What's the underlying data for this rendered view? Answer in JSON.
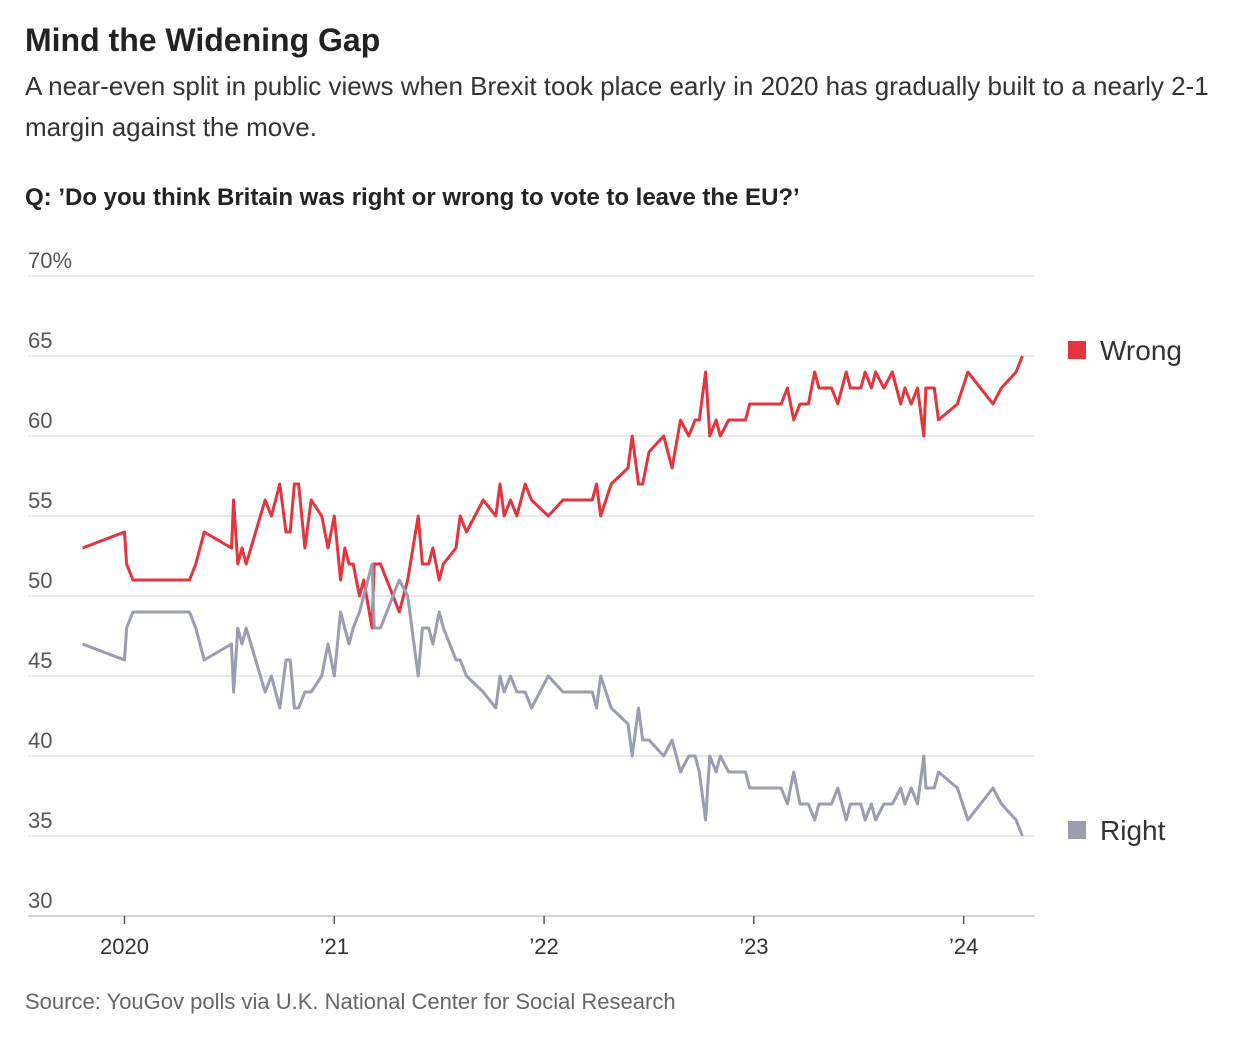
{
  "chart_data": {
    "type": "line",
    "title": "Mind the Widening Gap",
    "subtitle": "A near-even split in public views when Brexit took place early in 2020 has gradually built to a nearly 2-1 margin against the move.",
    "question": "Q: ’Do you think Britain was right or wrong to vote to leave the EU?’",
    "source": "Source: YouGov polls via U.K. National Center for Social Research",
    "xlim": [
      2019.54,
      2024.34
    ],
    "xticks": [
      2020,
      {
        "value": 2021,
        "label": "’21"
      },
      {
        "value": 2022,
        "label": "’22"
      },
      {
        "value": 2023,
        "label": "’23"
      },
      {
        "value": 2024,
        "label": "’24"
      }
    ],
    "ylim": [
      30,
      70
    ],
    "yticks": [
      30,
      35,
      40,
      45,
      50,
      55,
      60,
      65,
      {
        "value": 70,
        "label": "70%"
      }
    ],
    "grid": true,
    "x": [
      2019.8,
      2020.0,
      2020.01,
      2020.04,
      2020.31,
      2020.34,
      2020.38,
      2020.51,
      2020.52,
      2020.54,
      2020.56,
      2020.58,
      2020.67,
      2020.7,
      2020.74,
      2020.77,
      2020.79,
      2020.81,
      2020.83,
      2020.86,
      2020.89,
      2020.94,
      2020.97,
      2021.0,
      2021.03,
      2021.05,
      2021.07,
      2021.09,
      2021.12,
      2021.14,
      2021.18,
      2021.19,
      2021.22,
      2021.31,
      2021.35,
      2021.4,
      2021.42,
      2021.45,
      2021.47,
      2021.5,
      2021.52,
      2021.58,
      2021.6,
      2021.63,
      2021.71,
      2021.77,
      2021.79,
      2021.81,
      2021.84,
      2021.87,
      2021.91,
      2021.94,
      2022.02,
      2022.09,
      2022.23,
      2022.25,
      2022.27,
      2022.32,
      2022.4,
      2022.42,
      2022.45,
      2022.47,
      2022.5,
      2022.57,
      2022.61,
      2022.65,
      2022.69,
      2022.72,
      2022.74,
      2022.77,
      2022.79,
      2022.82,
      2022.84,
      2022.88,
      2022.96,
      2022.98,
      2023.13,
      2023.16,
      2023.19,
      2023.22,
      2023.26,
      2023.29,
      2023.31,
      2023.37,
      2023.4,
      2023.44,
      2023.46,
      2023.51,
      2023.53,
      2023.56,
      2023.58,
      2023.62,
      2023.66,
      2023.7,
      2023.72,
      2023.75,
      2023.78,
      2023.81,
      2023.82,
      2023.86,
      2023.88,
      2023.97,
      2024.02,
      2024.14,
      2024.18,
      2024.25,
      2024.28
    ],
    "series": [
      {
        "name": "Wrong",
        "color": "#e4343e",
        "values": [
          53,
          54,
          52,
          51,
          51,
          52,
          54,
          53,
          56,
          52,
          53,
          52,
          56,
          55,
          57,
          54,
          54,
          57,
          57,
          53,
          56,
          55,
          53,
          55,
          51,
          53,
          52,
          52,
          50,
          51,
          48,
          52,
          52,
          49,
          51,
          55,
          52,
          52,
          53,
          51,
          52,
          53,
          55,
          54,
          56,
          55,
          57,
          55,
          56,
          55,
          57,
          56,
          55,
          56,
          56,
          57,
          55,
          57,
          58,
          60,
          57,
          57,
          59,
          60,
          58,
          61,
          60,
          61,
          61,
          64,
          60,
          61,
          60,
          61,
          61,
          62,
          62,
          63,
          61,
          62,
          62,
          64,
          63,
          63,
          62,
          64,
          63,
          63,
          64,
          63,
          64,
          63,
          64,
          62,
          63,
          62,
          63,
          60,
          63,
          63,
          61,
          62,
          64,
          62,
          63,
          64,
          65
        ]
      },
      {
        "name": "Right",
        "color": "#9a9cb0",
        "values": [
          47,
          46,
          48,
          49,
          49,
          48,
          46,
          47,
          44,
          48,
          47,
          48,
          44,
          45,
          43,
          46,
          46,
          43,
          43,
          44,
          44,
          45,
          47,
          45,
          49,
          48,
          47,
          48,
          49,
          50,
          52,
          48,
          48,
          51,
          50,
          45,
          48,
          48,
          47,
          49,
          48,
          46,
          46,
          45,
          44,
          43,
          45,
          44,
          45,
          44,
          44,
          43,
          45,
          44,
          44,
          43,
          45,
          43,
          42,
          40,
          43,
          41,
          41,
          40,
          41,
          39,
          40,
          40,
          39,
          36,
          40,
          39,
          40,
          39,
          39,
          38,
          38,
          37,
          39,
          37,
          37,
          36,
          37,
          37,
          38,
          36,
          37,
          37,
          36,
          37,
          36,
          37,
          37,
          38,
          37,
          38,
          37,
          40,
          38,
          38,
          39,
          38,
          36,
          38,
          37,
          36,
          35
        ]
      }
    ]
  }
}
